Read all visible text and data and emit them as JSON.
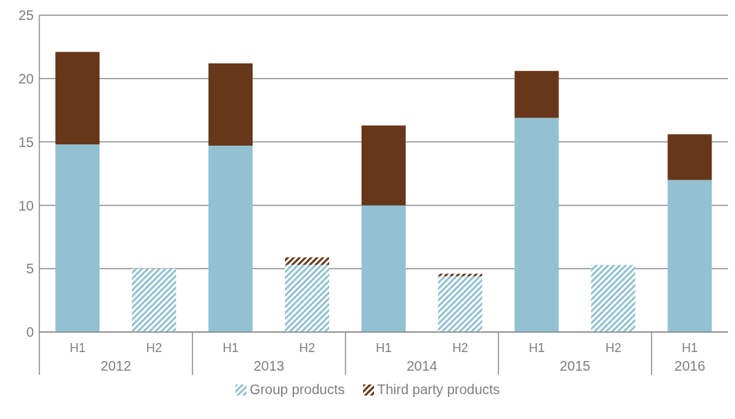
{
  "chart_data": {
    "type": "bar",
    "stacked": true,
    "categories": [
      "H1",
      "H2",
      "H1",
      "H2",
      "H1",
      "H2",
      "H1",
      "H2",
      "H1"
    ],
    "series": [
      {
        "name": "Group products",
        "color": "#92c1d3",
        "values": [
          14.8,
          5.0,
          14.7,
          5.3,
          10.0,
          4.4,
          16.9,
          5.3,
          12.0
        ]
      },
      {
        "name": "Third party products",
        "color": "#66371a",
        "values": [
          7.3,
          null,
          6.5,
          0.6,
          6.3,
          0.2,
          3.7,
          null,
          3.6
        ]
      }
    ],
    "annotations": [
      "2012",
      "2013",
      "2014",
      "2015",
      "2016"
    ],
    "ylim": [
      0,
      25
    ],
    "yticks": [
      0,
      5,
      10,
      15,
      20,
      25
    ],
    "grid": "y",
    "legend": "bottom"
  }
}
